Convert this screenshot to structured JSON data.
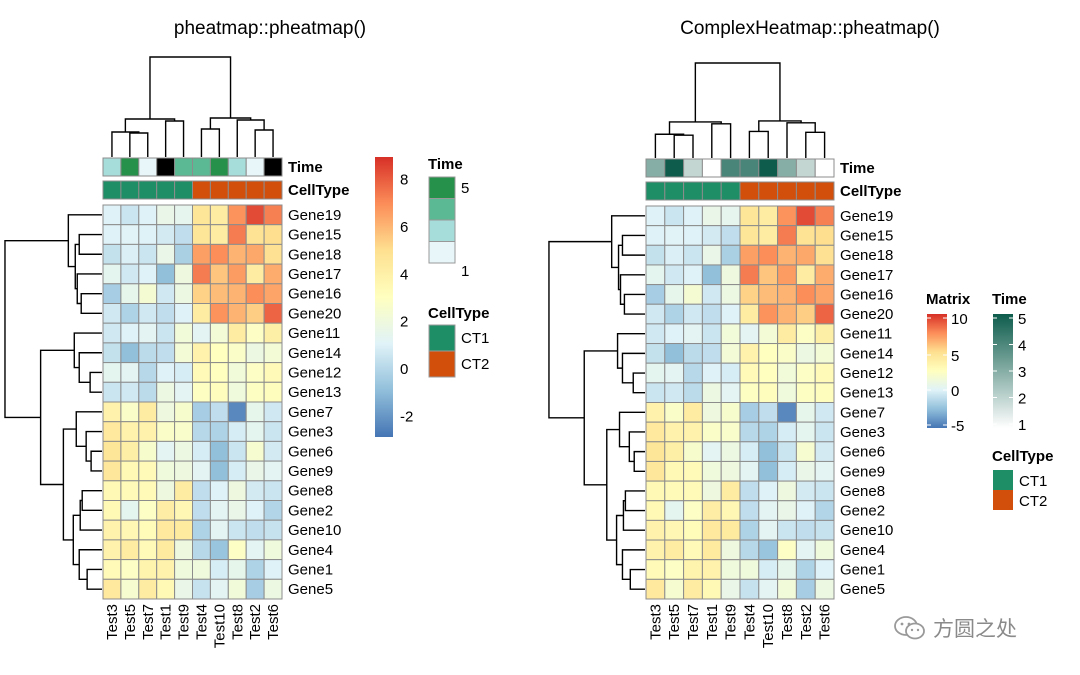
{
  "chart_data": [
    {
      "type": "heatmap",
      "title": "pheatmap::pheatmap()",
      "panel": "left",
      "legend": {
        "title": "",
        "ticks": [
          8,
          6,
          4,
          2,
          0,
          -2
        ],
        "range": [
          -2.9,
          8.9
        ]
      },
      "time_legend": {
        "title": "Time",
        "labels": [
          "5",
          "1"
        ],
        "style": "discrete",
        "colors": [
          "#26914A",
          "#5BBA94",
          "#A6DCD9",
          "#E8F6F9"
        ]
      },
      "celltype_legend": {
        "title": "CellType",
        "labels": [
          "CT1",
          "CT2"
        ]
      }
    },
    {
      "type": "heatmap",
      "title": "ComplexHeatmap::pheatmap()",
      "panel": "right",
      "legend": {
        "title": "Matrix",
        "ticks": [
          10,
          5,
          0,
          -5
        ],
        "range": [
          -5.5,
          11
        ]
      },
      "time_legend": {
        "title": "Time",
        "labels": [
          "5",
          "4",
          "3",
          "2",
          "1"
        ],
        "style": "continuous",
        "colors": [
          "#0D5C4C",
          "#FFFFFF"
        ]
      },
      "celltype_legend": {
        "title": "CellType",
        "labels": [
          "CT1",
          "CT2"
        ]
      }
    }
  ],
  "annotation_labels": {
    "time": "Time",
    "celltype": "CellType"
  },
  "samples": [
    "Test3",
    "Test5",
    "Test7",
    "Test1",
    "Test9",
    "Test4",
    "Test10",
    "Test8",
    "Test2",
    "Test6"
  ],
  "genes": [
    "Gene19",
    "Gene15",
    "Gene18",
    "Gene17",
    "Gene16",
    "Gene20",
    "Gene11",
    "Gene14",
    "Gene12",
    "Gene13",
    "Gene7",
    "Gene3",
    "Gene6",
    "Gene9",
    "Gene8",
    "Gene2",
    "Gene10",
    "Gene4",
    "Gene1",
    "Gene5"
  ],
  "time": [
    3,
    5,
    2,
    1,
    4,
    4,
    5,
    3,
    2,
    1
  ],
  "celltype": [
    "CT1",
    "CT1",
    "CT1",
    "CT1",
    "CT1",
    "CT2",
    "CT2",
    "CT2",
    "CT2",
    "CT2"
  ],
  "celltype_colors": {
    "CT1": "#1D8E66",
    "CT2": "#D24E0B"
  },
  "heat_colors": [
    "#4575B4",
    "#91BFDB",
    "#E0F3F8",
    "#FFFFBF",
    "#FEE090",
    "#FC8D59",
    "#D73027"
  ],
  "matrix": [
    [
      1.0,
      0.5,
      1.0,
      1.6,
      1.4,
      4.6,
      4.2,
      6.8,
      8.3,
      7.2
    ],
    [
      1.0,
      1.1,
      1.0,
      0.7,
      0.2,
      4.6,
      4.2,
      7.3,
      4.8,
      5.0
    ],
    [
      0.3,
      0.9,
      0.5,
      1.6,
      -0.3,
      6.5,
      6.9,
      6.0,
      6.3,
      4.9
    ],
    [
      1.3,
      0.6,
      1.0,
      -0.9,
      1.9,
      7.3,
      5.6,
      6.6,
      4.2,
      6.2
    ],
    [
      -0.4,
      1.5,
      2.3,
      0.6,
      1.8,
      5.3,
      5.8,
      6.0,
      6.9,
      6.4
    ],
    [
      0.6,
      -0.2,
      0.6,
      0.2,
      1.0,
      4.2,
      6.8,
      6.0,
      5.4,
      7.8
    ],
    [
      0.6,
      1.0,
      1.2,
      0.5,
      2.1,
      1.2,
      2.2,
      4.2,
      2.8,
      4.0
    ],
    [
      0.3,
      -0.9,
      0.1,
      0.2,
      2.2,
      3.8,
      3.0,
      2.7,
      1.8,
      2.2
    ],
    [
      1.3,
      1.2,
      0.0,
      1.0,
      0.8,
      3.3,
      3.0,
      2.1,
      2.8,
      3.3
    ],
    [
      0.5,
      0.6,
      0.1,
      1.8,
      1.2,
      2.9,
      3.1,
      2.0,
      2.9,
      3.1
    ],
    [
      3.8,
      2.7,
      4.2,
      1.9,
      2.5,
      -0.4,
      0.2,
      -2.4,
      1.5,
      0.6
    ],
    [
      4.4,
      3.8,
      3.8,
      2.7,
      2.6,
      0.0,
      -0.2,
      0.8,
      1.3,
      0.5
    ],
    [
      4.6,
      4.0,
      2.5,
      1.2,
      1.8,
      0.8,
      -0.9,
      0.5,
      2.4,
      0.7
    ],
    [
      4.5,
      3.4,
      3.3,
      2.0,
      1.9,
      1.2,
      -0.9,
      0.8,
      1.6,
      1.2
    ],
    [
      3.4,
      3.3,
      3.3,
      1.9,
      4.2,
      0.2,
      1.0,
      1.9,
      0.7,
      0.5
    ],
    [
      3.4,
      1.3,
      2.8,
      4.1,
      3.5,
      0.2,
      1.2,
      1.6,
      1.0,
      -0.1
    ],
    [
      3.8,
      3.5,
      3.2,
      4.4,
      4.3,
      -0.2,
      1.2,
      0.5,
      0.2,
      0.4
    ],
    [
      3.8,
      4.2,
      3.3,
      4.3,
      1.9,
      0.0,
      -0.7,
      2.8,
      1.2,
      2.0
    ],
    [
      3.3,
      2.8,
      3.7,
      3.8,
      2.0,
      2.0,
      0.8,
      1.5,
      -0.2,
      1.0
    ],
    [
      4.4,
      2.4,
      4.2,
      3.4,
      1.6,
      0.4,
      1.2,
      2.1,
      -0.4,
      1.8
    ]
  ],
  "watermark": "方圆之处",
  "watermark_icon": "wechat-icon"
}
